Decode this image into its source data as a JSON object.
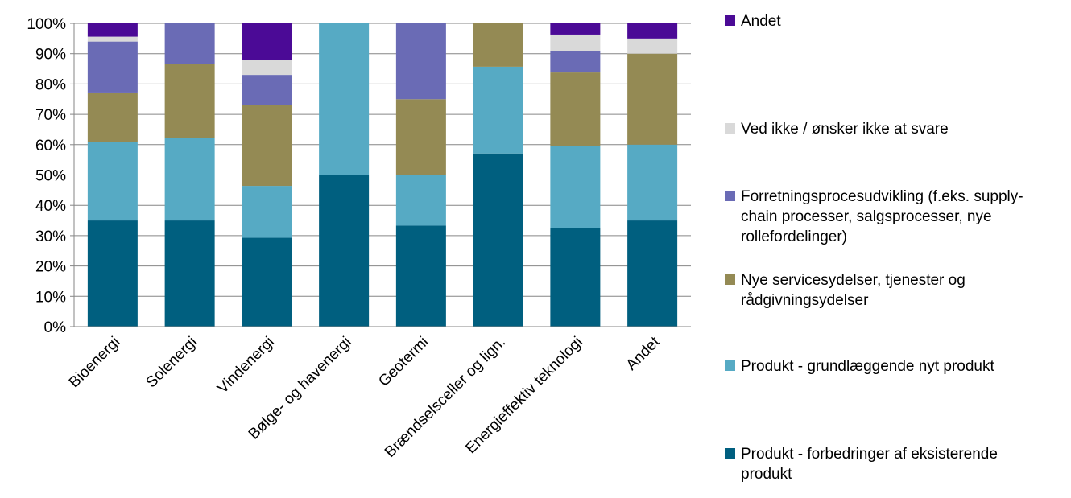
{
  "chart_data": {
    "type": "bar",
    "stacked": true,
    "normalized": true,
    "categories": [
      "Bioenergi",
      "Solenergi",
      "Vindenergi",
      "Bølge- og havenergi",
      "Geotermi",
      "Brændselsceller og lign.",
      "Energieffektiv teknologi",
      "Andet"
    ],
    "series": [
      {
        "name": "Produkt - forbedringer af eksisterende produkt",
        "color": "#005f7f",
        "values": [
          35,
          35,
          29.3,
          50,
          33.3,
          57.1,
          32.4,
          35
        ]
      },
      {
        "name": "Produkt - grundlæggende nyt produkt",
        "color": "#56aac4",
        "values": [
          25.8,
          27.3,
          17.1,
          50,
          16.7,
          28.6,
          27.1,
          25
        ]
      },
      {
        "name": "Nye servicesydelser, tjenester og rådgivningsydelser",
        "color": "#948a54",
        "values": [
          16.4,
          24.2,
          26.8,
          0,
          25,
          14.3,
          24.3,
          30
        ]
      },
      {
        "name": "Forretningsprocesudvikling (f.eks. supply-chain processer, salgsprocesser, nye rollefordelinger)",
        "color": "#6a6bb5",
        "values": [
          16.8,
          13.5,
          9.8,
          0,
          25,
          0,
          7.1,
          0
        ]
      },
      {
        "name": "Ved ikke / ønsker ikke at svare",
        "color": "#d9d9d9",
        "values": [
          1.6,
          0,
          4.8,
          0,
          0,
          0,
          5.4,
          5
        ]
      },
      {
        "name": "Andet",
        "color": "#4b0a96",
        "values": [
          4.4,
          0,
          12.2,
          0,
          0,
          0,
          3.7,
          5
        ]
      }
    ],
    "ylim": [
      0,
      100
    ],
    "yticks": [
      "0%",
      "10%",
      "20%",
      "30%",
      "40%",
      "50%",
      "60%",
      "70%",
      "80%",
      "90%",
      "100%"
    ],
    "grid": true,
    "legend_position": "right",
    "legend_order": [
      "Andet",
      "Ved ikke / ønsker ikke at svare",
      "Forretningsprocesudvikling (f.eks. supply-chain processer, salgsprocesser, nye rollefordelinger)",
      "Nye servicesydelser, tjenester og rådgivningsydelser",
      "Produkt - grundlæggende nyt produkt",
      "Produkt - forbedringer af eksisterende produkt"
    ],
    "legend_lines": [
      [
        "Andet"
      ],
      [
        "Ved ikke / ønsker ikke at svare"
      ],
      [
        "Forretningsprocesudvikling (f.eks. supply-",
        "chain processer, salgsprocesser, nye",
        "rollefordelinger)"
      ],
      [
        "Nye servicesydelser, tjenester og",
        "rådgivningsydelser"
      ],
      [
        "Produkt - grundlæggende nyt produkt"
      ],
      [
        "Produkt - forbedringer af eksisterende",
        "produkt"
      ]
    ]
  }
}
